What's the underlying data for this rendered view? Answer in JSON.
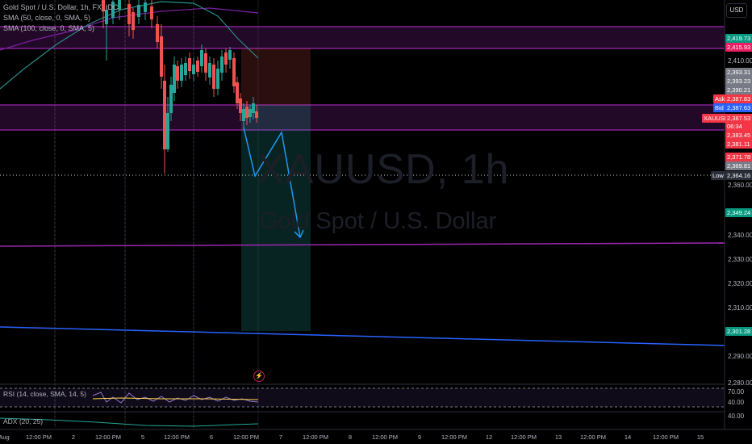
{
  "legend": {
    "symbol_line": "Gold Spot / U.S. Dollar, 1h, FX_IDC",
    "sma50": "SMA (50, close, 0, SMA, 5)",
    "sma100": "SMA (100, close, 0, SMA, 5)"
  },
  "currency_button": "USD",
  "watermark": {
    "symbol": "XAUUSD, 1h",
    "name": "Gold Spot / U.S. Dollar"
  },
  "price_axis": [
    "2,410.00",
    "2,360.00",
    "2,340.00",
    "2,330.00",
    "2,320.00",
    "2,310.00",
    "2,290.00",
    "2,280.00"
  ],
  "price_tags": {
    "t1": "2,419.73",
    "t2": "2,415.93",
    "t3": "2,393.31",
    "t4": "2,393.23",
    "t5": "2,390.21",
    "ask_label": "Ask",
    "ask": "2,387.83",
    "bid_label": "Bid",
    "bid": "2,387.63",
    "symbol": "XAUUSD",
    "last": "2,387.53",
    "countdown": "06:34",
    "t6": "2,383.45",
    "t7": "2,381.11",
    "t8": "2,371.78",
    "t9": "2,369.81",
    "low_label": "Low",
    "low": "2,364.16",
    "t10": "2,349.24",
    "t11": "2,301.28"
  },
  "rsi": {
    "label": "RSI (14, close, SMA, 14, 5)",
    "axis": [
      "70.00",
      "40.00"
    ]
  },
  "adx": {
    "label": "ADX (20, 25)",
    "axis": [
      "40.00"
    ]
  },
  "time_axis": [
    "Aug",
    "12:00 PM",
    "2",
    "12:00 PM",
    "5",
    "12:00 PM",
    "6",
    "12:00 PM",
    "7",
    "12:00 PM",
    "8",
    "12:00 PM",
    "9",
    "12:00 PM",
    "12",
    "12:00 PM",
    "13",
    "12:00 PM",
    "14",
    "12:00 PM",
    "15"
  ],
  "colors": {
    "background": "#000000",
    "up": "#26a69a",
    "down": "#ef5350",
    "zone": "#9c27b0",
    "projection": "#2196f3",
    "trend": "#2962ff",
    "sma50": "#26a69a",
    "sma100": "#7b1fa2"
  }
}
